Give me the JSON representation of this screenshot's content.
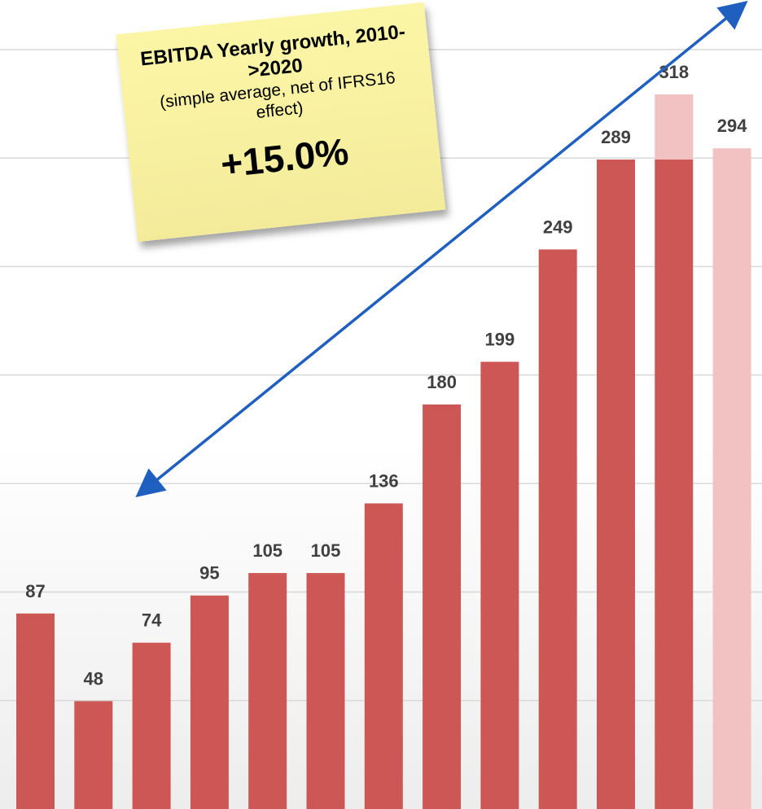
{
  "chart_data": {
    "type": "bar",
    "values": [
      87,
      48,
      74,
      95,
      105,
      105,
      136,
      180,
      199,
      249,
      289,
      318,
      294
    ],
    "series_note": "bar 12 shows 289-level solid portion with lighter extension to 318; bar 13 is lighter",
    "stacked_overlay": {
      "index": 11,
      "base": 289,
      "total": 318
    },
    "highlight_index": 12,
    "ylim": [
      0,
      360
    ],
    "grid": true,
    "colors": {
      "bar": "#cd5754",
      "bar_light": "#f2c1c2",
      "grid": "#d9d9d9",
      "arrow": "#1f5fbf"
    }
  },
  "note": {
    "title": "EBITDA Yearly growth, 2010->2020",
    "subtitle": "(simple average, net of IFRS16 effect)",
    "value": "+15.0%"
  }
}
